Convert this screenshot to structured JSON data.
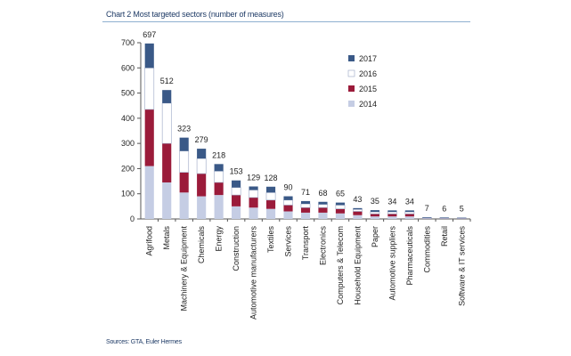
{
  "chart_data": {
    "type": "bar",
    "stacked": true,
    "title": "Chart 2 Most targeted sectors (number of measures)",
    "source": "Sources: GTA, Euler Hermes",
    "ylim": [
      0,
      700
    ],
    "yticks": [
      0,
      100,
      200,
      300,
      400,
      500,
      600,
      700
    ],
    "categories": [
      "Agrifood",
      "Metals",
      "Machinery & Equipment",
      "Chemicals",
      "Energy",
      "Construction",
      "Automotive manufacturers",
      "Textiles",
      "Services",
      "Transport",
      "Electronics",
      "Computers & Telecom",
      "Household Equipment",
      "Paper",
      "Automotive suppliers",
      "Pharmaceuticals",
      "Commodities",
      "Retail",
      "Software & IT services"
    ],
    "totals": [
      697,
      512,
      323,
      279,
      218,
      153,
      129,
      128,
      90,
      71,
      68,
      65,
      43,
      35,
      34,
      34,
      7,
      6,
      5
    ],
    "series": [
      {
        "name": "2014",
        "color": "#c5cde4",
        "values": [
          210,
          145,
          105,
          90,
          95,
          50,
          45,
          40,
          30,
          25,
          25,
          22,
          15,
          10,
          10,
          10,
          2,
          2,
          2
        ]
      },
      {
        "name": "2015",
        "color": "#9b1b3a",
        "values": [
          225,
          155,
          80,
          90,
          50,
          45,
          40,
          35,
          25,
          20,
          20,
          18,
          15,
          10,
          10,
          10,
          2,
          1,
          1
        ]
      },
      {
        "name": "2016",
        "color": "#ffffff",
        "values": [
          165,
          160,
          85,
          60,
          45,
          30,
          30,
          30,
          20,
          15,
          13,
          15,
          8,
          8,
          8,
          8,
          1,
          1,
          1
        ]
      },
      {
        "name": "2017",
        "color": "#3a5987",
        "values": [
          97,
          52,
          53,
          39,
          28,
          28,
          14,
          23,
          15,
          11,
          10,
          10,
          5,
          7,
          6,
          6,
          2,
          2,
          1
        ]
      }
    ],
    "legend": [
      "2017",
      "2016",
      "2015",
      "2014"
    ],
    "legend_position": "top-right",
    "xlabel": "",
    "ylabel": ""
  }
}
